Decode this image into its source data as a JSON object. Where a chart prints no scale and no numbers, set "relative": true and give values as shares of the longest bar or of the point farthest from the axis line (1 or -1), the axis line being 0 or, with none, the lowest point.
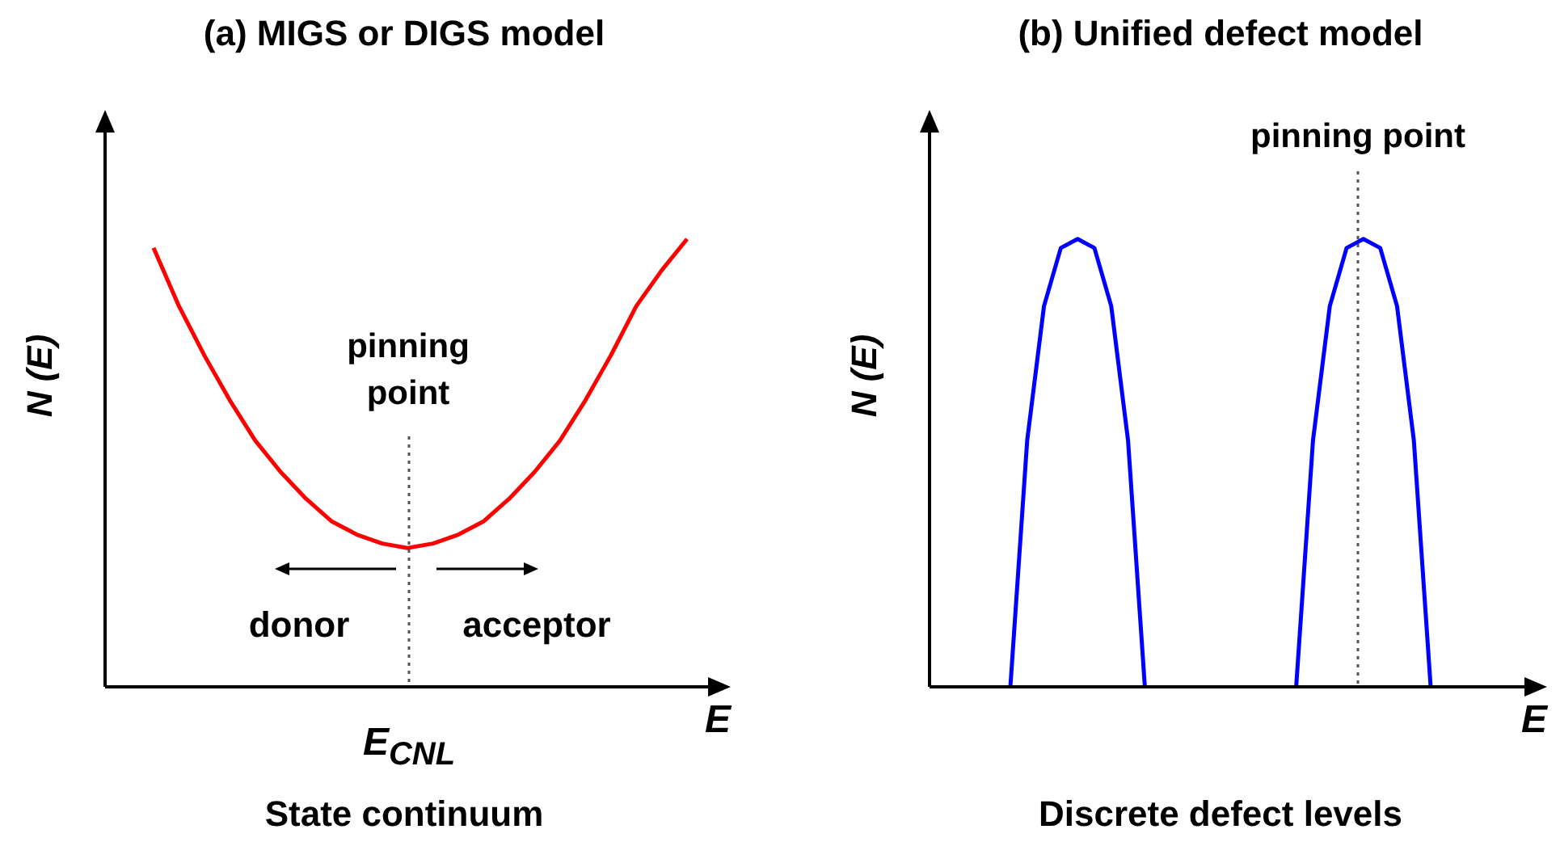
{
  "chart_data": [
    {
      "type": "line",
      "title": "(a) MIGS or DIGS model",
      "xlabel": "E",
      "ylabel": "N (E)",
      "relative": true,
      "categories": [
        null,
        null,
        null,
        null,
        null,
        null,
        null,
        null,
        null,
        null,
        null,
        null,
        null,
        null,
        null,
        null,
        null,
        null,
        null,
        null,
        null,
        null
      ],
      "series": [
        {
          "color": "#ff0000",
          "values": [
            0.98,
            0.85,
            0.74,
            0.64,
            0.55,
            0.48,
            0.42,
            0.37,
            0.34,
            0.32,
            0.31,
            0.32,
            0.34,
            0.37,
            0.42,
            0.48,
            0.55,
            0.64,
            0.74,
            0.85,
            0.93,
            1.0
          ]
        }
      ],
      "annotations": [
        "pinning point",
        "E$_{CNL}$",
        "donor",
        "acceptor",
        "State continuum"
      ]
    },
    {
      "type": "line",
      "title": "(b) Unified defect model",
      "xlabel": "E",
      "ylabel": "N (E)",
      "relative": true,
      "categories": [
        null,
        null,
        null,
        null,
        null,
        null,
        null,
        null,
        null,
        null,
        null,
        null,
        null,
        null,
        null,
        null,
        null,
        null,
        null,
        null,
        null,
        null,
        null,
        null,
        null,
        null
      ],
      "series": [
        {
          "color": "#0000ff",
          "values": [
            0,
            0.55,
            0.85,
            0.98,
            1,
            0.98,
            0.85,
            0.55,
            0,
            null,
            null,
            null,
            null,
            null,
            null,
            null,
            null,
            null,
            null,
            null,
            null,
            null,
            null,
            null,
            null,
            null
          ]
        },
        {
          "color": "#0000ff",
          "values": [
            null,
            null,
            null,
            null,
            null,
            null,
            null,
            null,
            null,
            null,
            null,
            null,
            null,
            null,
            null,
            null,
            null,
            0,
            0.55,
            0.85,
            0.98,
            1,
            0.98,
            0.85,
            0.55,
            0
          ]
        }
      ],
      "annotations": [
        "pinning point",
        "Discrete defect levels"
      ]
    }
  ]
}
